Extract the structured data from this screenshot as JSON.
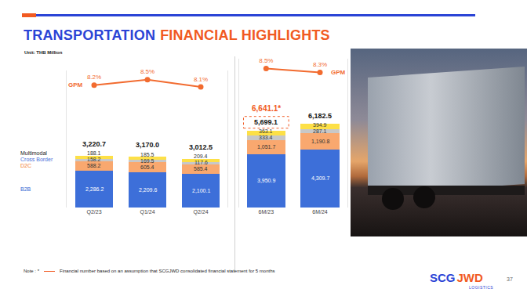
{
  "slide": {
    "title": [
      "TRANSPORTATION",
      "FINANCIAL HIGHLIGHTS"
    ],
    "unit": "Unit: THB Million",
    "note": {
      "label": "Note : *",
      "text": "Financial number based on an assumption that SCGJWD consolidated financial statement for 5 months"
    },
    "logo": {
      "parts": [
        "SCG",
        "JWD"
      ],
      "sub": "LOGISTICS"
    },
    "page": "37"
  },
  "chart_data": [
    {
      "type": "bar",
      "stacked": true,
      "data_labels": true,
      "tick_labels": "x",
      "grid": false,
      "legend": "left",
      "categories": [
        "Q2/23",
        "Q1/24",
        "Q2/24"
      ],
      "series": [
        {
          "name": "B2B",
          "color": "#3d6fd9",
          "values": [
            2286.2,
            2209.6,
            2100.1
          ],
          "value_labels": [
            "2,286.2",
            "2,209.6",
            "2,100.1"
          ]
        },
        {
          "name": "D2C",
          "color": "#f9a86f",
          "values": [
            588.2,
            605.4,
            585.4
          ]
        },
        {
          "name": "Cross Border",
          "color": "#c8c8c8",
          "values": [
            158.2,
            169.5,
            117.6
          ]
        },
        {
          "name": "Multimodal",
          "color": "#fde047",
          "values": [
            188.1,
            185.5,
            209.4
          ]
        },
        {
          "name": "GPM",
          "type": "line",
          "axis": "y2",
          "color": "#f26b2f",
          "marker": "circle",
          "values": [
            8.2,
            8.5,
            8.1
          ],
          "value_labels": [
            "8.2%",
            "8.5%",
            "8.1%"
          ]
        }
      ],
      "totals": [
        3220.7,
        3170.0,
        3012.5
      ],
      "total_labels": [
        "3,220.7",
        "3,170.0",
        "3,012.5"
      ],
      "ylim": [
        0,
        8500
      ],
      "yticks": [
        0,
        8500
      ],
      "y2lim": [
        1.5,
        9
      ],
      "y2ticks": [
        1.5,
        9
      ]
    },
    {
      "type": "bar",
      "stacked": true,
      "data_labels": true,
      "tick_labels": "x",
      "grid": false,
      "legend": false,
      "categories": [
        "6M/23",
        "6M/24"
      ],
      "series": [
        {
          "name": "B2B",
          "color": "#3d6fd9",
          "values": [
            3950.9,
            4309.7
          ],
          "value_labels": [
            "3,950.9",
            "4,309.7"
          ]
        },
        {
          "name": "D2C",
          "color": "#f9a86f",
          "values": [
            1051.7,
            1190.8
          ],
          "value_labels": [
            "1,051.7",
            "1,190.8"
          ]
        },
        {
          "name": "Cross Border",
          "color": "#c8c8c8",
          "values": [
            333.4,
            287.1
          ]
        },
        {
          "name": "Multimodal",
          "color": "#fde047",
          "values": [
            363.1,
            394.9
          ]
        },
        {
          "name": "GPM",
          "type": "line",
          "axis": "y2",
          "color": "#f26b2f",
          "marker": "circle",
          "values": [
            8.5,
            8.3
          ],
          "value_labels": [
            "8.5%",
            "8.3%"
          ]
        }
      ],
      "totals": [
        5699.1,
        6182.5
      ],
      "total_labels": [
        "5,699.1",
        "6,182.5"
      ],
      "annotations": [
        {
          "text": "6,641.1*",
          "value": 6641.1,
          "category": "6M/23"
        }
      ],
      "ylim": [
        0,
        11000
      ],
      "yticks": [
        0,
        11000
      ],
      "y2lim": [
        1.4,
        9
      ],
      "y2ticks": [
        1.4,
        9
      ]
    }
  ]
}
